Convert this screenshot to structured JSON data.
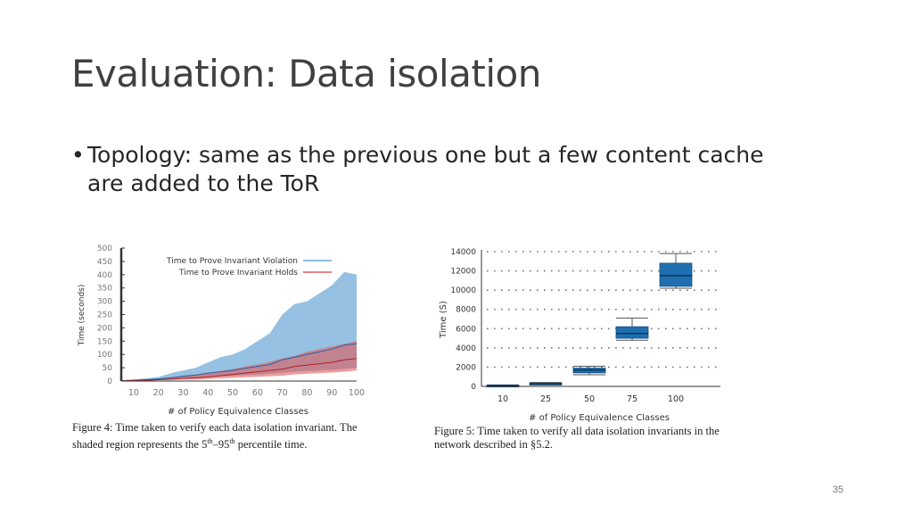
{
  "slide": {
    "title": "Evaluation: Data isolation",
    "bullet": "Topology: same as the previous one but a few content cache are added to the ToR",
    "page_number": "35"
  },
  "figure4": {
    "caption_line1": "Figure 4: Time taken to verify each data isolation invariant. The",
    "caption_line2_pre": "shaded region represents the 5",
    "caption_sup1": "th",
    "caption_mid": "–95",
    "caption_sup2": "th",
    "caption_post": " percentile time."
  },
  "figure5": {
    "caption_line1": "Figure 5: Time taken to verify all data isolation invariants in the",
    "caption_line2": "network described in §5.2."
  },
  "colors": {
    "violation": "#6aa7d6",
    "holds": "#e05a5a",
    "box": "#1f6fb0"
  },
  "chart_data": [
    {
      "type": "area",
      "title": "",
      "xlabel": "# of Policy Equivalence Classes",
      "ylabel": "Time (seconds)",
      "xlim": [
        5,
        100
      ],
      "ylim": [
        0,
        500
      ],
      "xticks": [
        10,
        20,
        30,
        40,
        50,
        60,
        70,
        80,
        90,
        100
      ],
      "yticks": [
        0,
        50,
        100,
        150,
        200,
        250,
        300,
        350,
        400,
        450,
        500
      ],
      "legend": "top-left",
      "series": [
        {
          "name": "Time to Prove Invariant Violation",
          "color": "#6aa7d6",
          "x": [
            5,
            10,
            15,
            20,
            25,
            30,
            35,
            40,
            45,
            50,
            55,
            60,
            65,
            70,
            75,
            80,
            85,
            90,
            95,
            100
          ],
          "lower": [
            0,
            2,
            3,
            5,
            8,
            10,
            12,
            15,
            18,
            20,
            22,
            25,
            28,
            32,
            35,
            38,
            40,
            42,
            45,
            50
          ],
          "upper": [
            3,
            6,
            10,
            15,
            30,
            40,
            50,
            70,
            90,
            100,
            120,
            150,
            180,
            250,
            290,
            300,
            330,
            360,
            410,
            400
          ],
          "median": [
            1,
            3,
            5,
            8,
            12,
            18,
            22,
            30,
            35,
            40,
            48,
            55,
            62,
            80,
            90,
            100,
            110,
            120,
            135,
            140
          ]
        },
        {
          "name": "Time to Prove Invariant Holds",
          "color": "#e05a5a",
          "x": [
            5,
            10,
            15,
            20,
            25,
            30,
            35,
            40,
            45,
            50,
            55,
            60,
            65,
            70,
            75,
            80,
            85,
            90,
            95,
            100
          ],
          "lower": [
            0,
            1,
            2,
            3,
            4,
            5,
            6,
            8,
            10,
            12,
            14,
            16,
            18,
            20,
            25,
            28,
            30,
            32,
            35,
            40
          ],
          "upper": [
            2,
            4,
            6,
            9,
            14,
            20,
            25,
            30,
            38,
            45,
            55,
            62,
            72,
            85,
            95,
            110,
            120,
            130,
            140,
            150
          ],
          "median": [
            1,
            2,
            3,
            5,
            7,
            10,
            12,
            15,
            20,
            25,
            30,
            35,
            40,
            45,
            55,
            60,
            65,
            70,
            80,
            85
          ]
        }
      ]
    },
    {
      "type": "box",
      "title": "",
      "xlabel": "# of Policy Equivalence Classes",
      "ylabel": "Time (S)",
      "ylim": [
        0,
        14000
      ],
      "yticks": [
        0,
        2000,
        4000,
        6000,
        8000,
        10000,
        12000,
        14000
      ],
      "grid": true,
      "categories": [
        "10",
        "25",
        "50",
        "75",
        "100"
      ],
      "boxes": [
        {
          "min": 50,
          "q1": 80,
          "median": 100,
          "q3": 130,
          "max": 150
        },
        {
          "min": 150,
          "q1": 220,
          "median": 280,
          "q3": 340,
          "max": 400
        },
        {
          "min": 1200,
          "q1": 1400,
          "median": 1700,
          "q3": 1900,
          "max": 2100
        },
        {
          "min": 4800,
          "q1": 5000,
          "median": 5500,
          "q3": 6200,
          "max": 7100
        },
        {
          "min": 10200,
          "q1": 10400,
          "median": 11500,
          "q3": 12800,
          "max": 13800
        }
      ]
    }
  ]
}
